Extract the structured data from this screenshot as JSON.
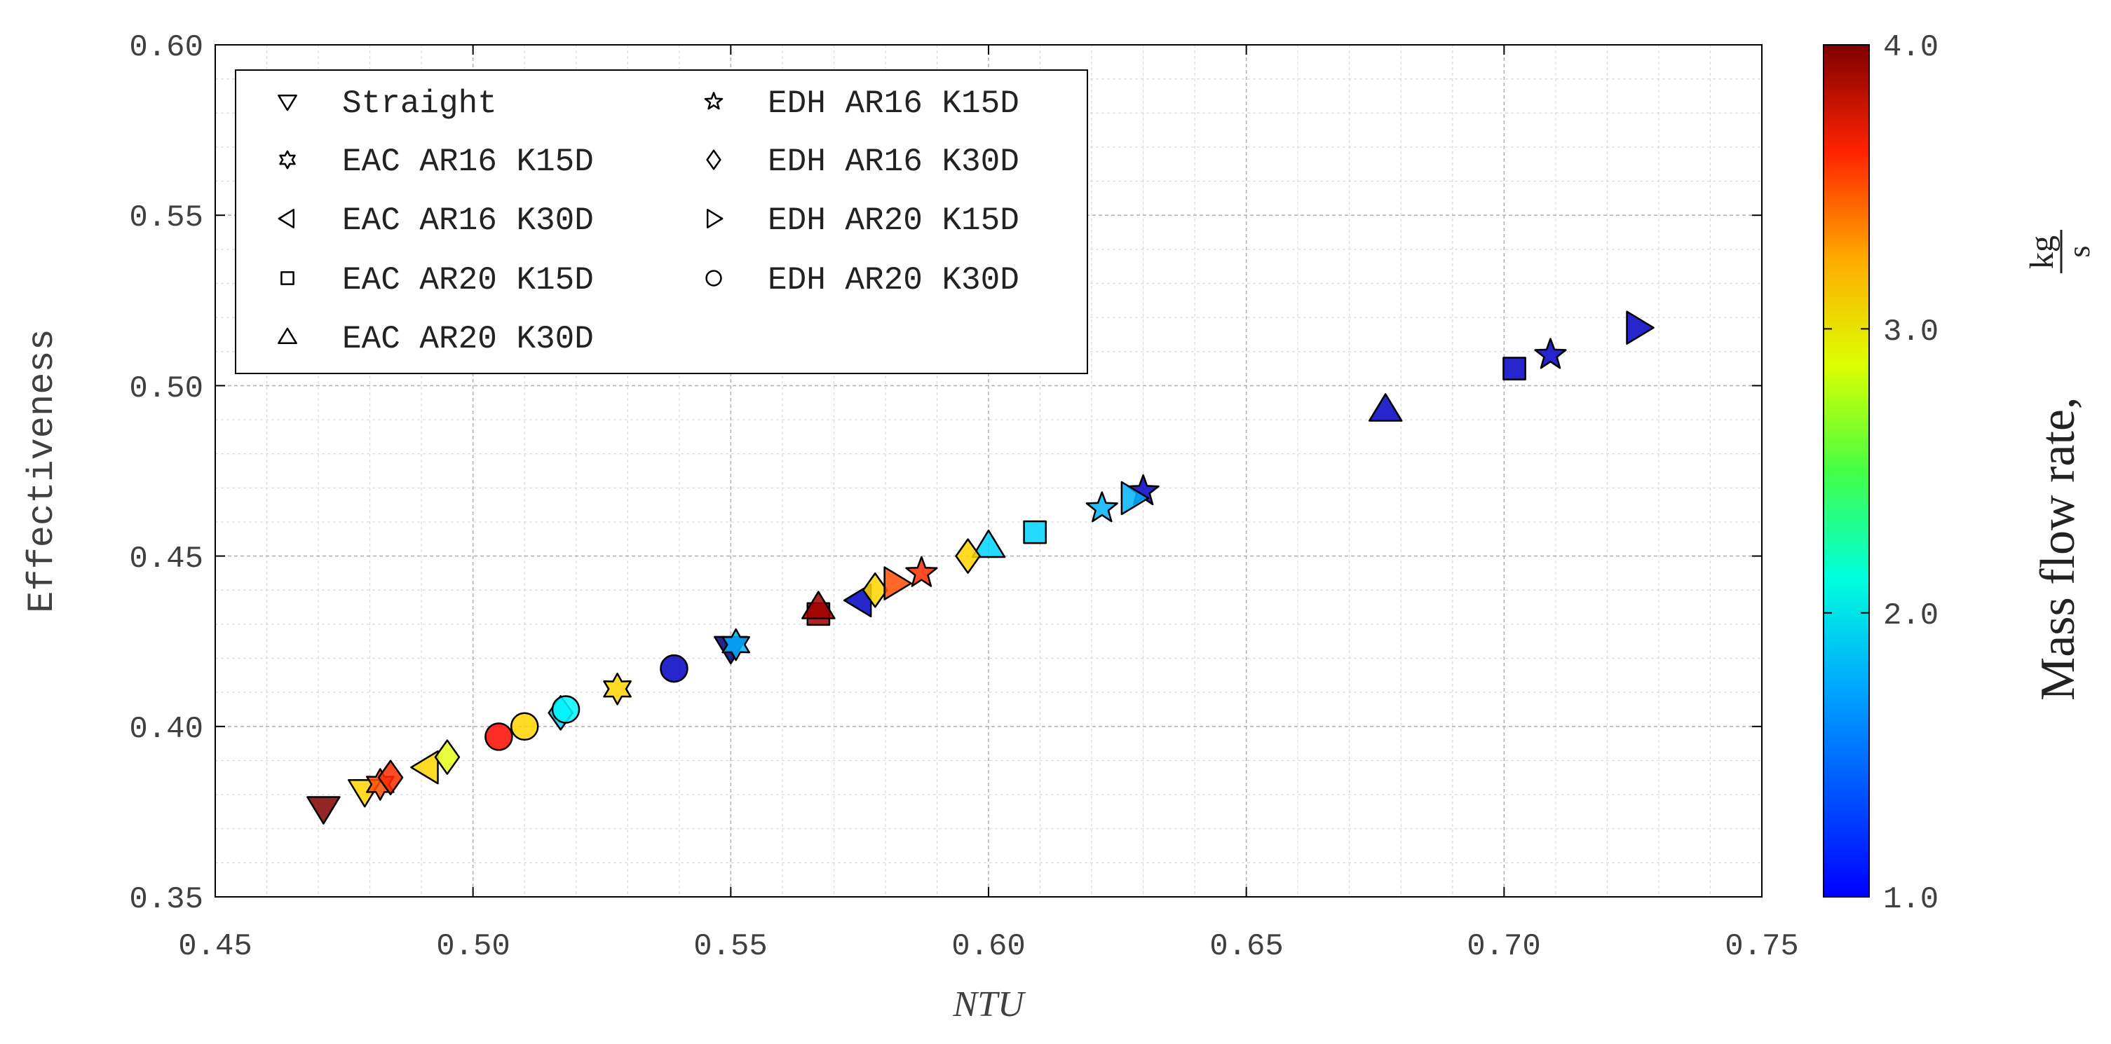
{
  "chart_data": {
    "type": "scatter",
    "xlabel": "NTU",
    "ylabel": "Effectiveness",
    "xlim": [
      0.45,
      0.75
    ],
    "ylim": [
      0.35,
      0.6
    ],
    "xticks": [
      "0.45",
      "0.50",
      "0.55",
      "0.60",
      "0.65",
      "0.70",
      "0.75"
    ],
    "yticks": [
      "0.35",
      "0.40",
      "0.45",
      "0.50",
      "0.55",
      "0.60"
    ],
    "grid": true,
    "legend_position": "top-left",
    "colorbar": {
      "label": "Mass flow rate,",
      "unit_numerator": "kg",
      "unit_denominator": "s",
      "range": [
        1.0,
        4.0
      ],
      "ticks": [
        "1.0",
        "2.0",
        "3.0",
        "4.0"
      ],
      "colormap": "jet"
    },
    "series": [
      {
        "name": "Straight",
        "marker": "triangle-down",
        "points": [
          {
            "x": 0.471,
            "y": 0.376,
            "c": 4.0
          },
          {
            "x": 0.479,
            "y": 0.381,
            "c": 3.0
          },
          {
            "x": 0.55,
            "y": 0.423,
            "c": 1.0
          }
        ]
      },
      {
        "name": "EAC AR16 K15D",
        "marker": "hexagram",
        "points": [
          {
            "x": 0.482,
            "y": 0.383,
            "c": 3.4
          },
          {
            "x": 0.528,
            "y": 0.411,
            "c": 3.0
          },
          {
            "x": 0.551,
            "y": 0.424,
            "c": 1.9
          }
        ]
      },
      {
        "name": "EAC AR16 K30D",
        "marker": "triangle-left",
        "points": [
          {
            "x": 0.491,
            "y": 0.388,
            "c": 3.0
          },
          {
            "x": 0.575,
            "y": 0.437,
            "c": 1.2
          }
        ]
      },
      {
        "name": "EAC AR20 K15D",
        "marker": "square",
        "points": [
          {
            "x": 0.567,
            "y": 0.433,
            "c": 3.9
          },
          {
            "x": 0.609,
            "y": 0.457,
            "c": 2.0
          },
          {
            "x": 0.702,
            "y": 0.505,
            "c": 1.2
          }
        ]
      },
      {
        "name": "EAC AR20 K30D",
        "marker": "triangle-up",
        "points": [
          {
            "x": 0.567,
            "y": 0.435,
            "c": 3.9
          },
          {
            "x": 0.6,
            "y": 0.453,
            "c": 2.0
          },
          {
            "x": 0.677,
            "y": 0.493,
            "c": 1.2
          }
        ]
      },
      {
        "name": "EDH AR16 K15D",
        "marker": "star",
        "points": [
          {
            "x": 0.587,
            "y": 0.445,
            "c": 3.5
          },
          {
            "x": 0.622,
            "y": 0.464,
            "c": 1.9
          },
          {
            "x": 0.63,
            "y": 0.469,
            "c": 1.2
          },
          {
            "x": 0.709,
            "y": 0.509,
            "c": 1.2
          }
        ]
      },
      {
        "name": "EDH AR16 K30D",
        "marker": "diamond",
        "points": [
          {
            "x": 0.484,
            "y": 0.385,
            "c": 3.5
          },
          {
            "x": 0.495,
            "y": 0.391,
            "c": 2.8
          },
          {
            "x": 0.517,
            "y": 0.404,
            "c": 2.0
          },
          {
            "x": 0.578,
            "y": 0.44,
            "c": 3.0
          },
          {
            "x": 0.596,
            "y": 0.45,
            "c": 3.0
          }
        ]
      },
      {
        "name": "EDH AR20 K15D",
        "marker": "triangle-right",
        "points": [
          {
            "x": 0.582,
            "y": 0.442,
            "c": 3.4
          },
          {
            "x": 0.628,
            "y": 0.467,
            "c": 1.9
          },
          {
            "x": 0.726,
            "y": 0.517,
            "c": 1.2
          }
        ]
      },
      {
        "name": "EDH AR20 K30D",
        "marker": "circle",
        "points": [
          {
            "x": 0.505,
            "y": 0.397,
            "c": 3.6
          },
          {
            "x": 0.51,
            "y": 0.4,
            "c": 3.0
          },
          {
            "x": 0.518,
            "y": 0.405,
            "c": 2.1
          },
          {
            "x": 0.539,
            "y": 0.417,
            "c": 1.2
          }
        ]
      }
    ]
  }
}
